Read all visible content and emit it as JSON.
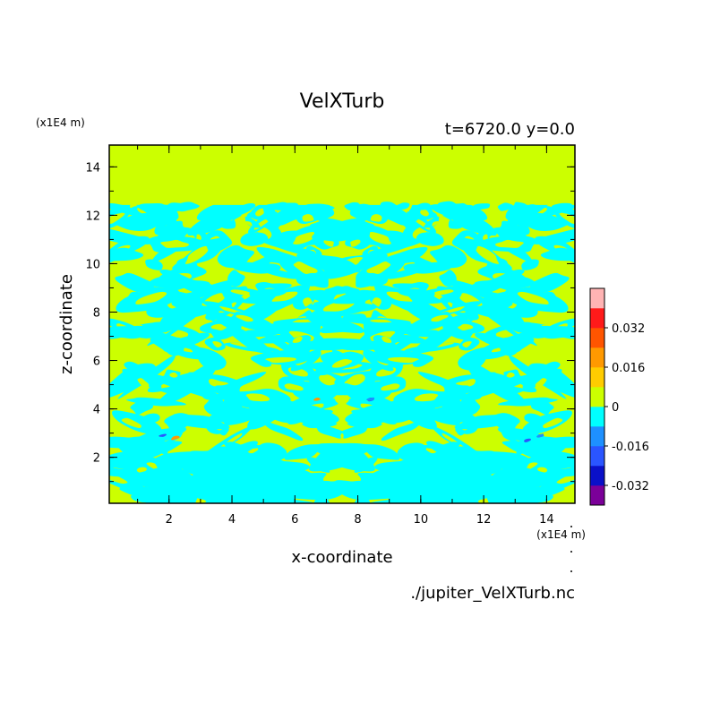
{
  "chart_data": {
    "type": "heatmap",
    "title": "VelXTurb",
    "subtitle": "t=6720.0 y=0.0",
    "xlabel": "x-coordinate",
    "ylabel": "z-coordinate",
    "x_unit": "(x1E4 m)",
    "y_unit": "(x1E4 m)",
    "source_file": "./jupiter_VelXTurb.nc",
    "xlim": [
      0.1,
      14.9
    ],
    "ylim": [
      0.1,
      14.9
    ],
    "xticks": [
      "2",
      "4",
      "6",
      "8",
      "10",
      "12",
      "14"
    ],
    "yticks": [
      "2",
      "4",
      "6",
      "8",
      "10",
      "12",
      "14"
    ],
    "xtick_values": [
      2,
      4,
      6,
      8,
      10,
      12,
      14
    ],
    "ytick_values": [
      2,
      4,
      6,
      8,
      10,
      12,
      14
    ],
    "colorbar": {
      "levels": [
        -0.04,
        -0.032,
        -0.024,
        -0.016,
        -0.008,
        0,
        0.008,
        0.016,
        0.024,
        0.032,
        0.04
      ],
      "colors": [
        "#7b0099",
        "#0a10c8",
        "#2a55ff",
        "#1e90ff",
        "#00ffff",
        "#ccff00",
        "#ffcc00",
        "#ff9900",
        "#ff5500",
        "#ff1a1a",
        "#ffb3b3"
      ],
      "tick_labels": [
        "-0.032",
        "-0.016",
        "0",
        "0.016",
        "0.032"
      ],
      "tick_values": [
        -0.032,
        -0.016,
        0,
        0.016,
        0.032
      ]
    },
    "field": {
      "background_color": "#ccff00",
      "negative_color": "#00ffff",
      "turbulent_zone_z": [
        0.1,
        12.5
      ],
      "symmetry_axis_x": 7.5,
      "quiescent_zone_z": [
        12.5,
        14.9
      ]
    }
  }
}
